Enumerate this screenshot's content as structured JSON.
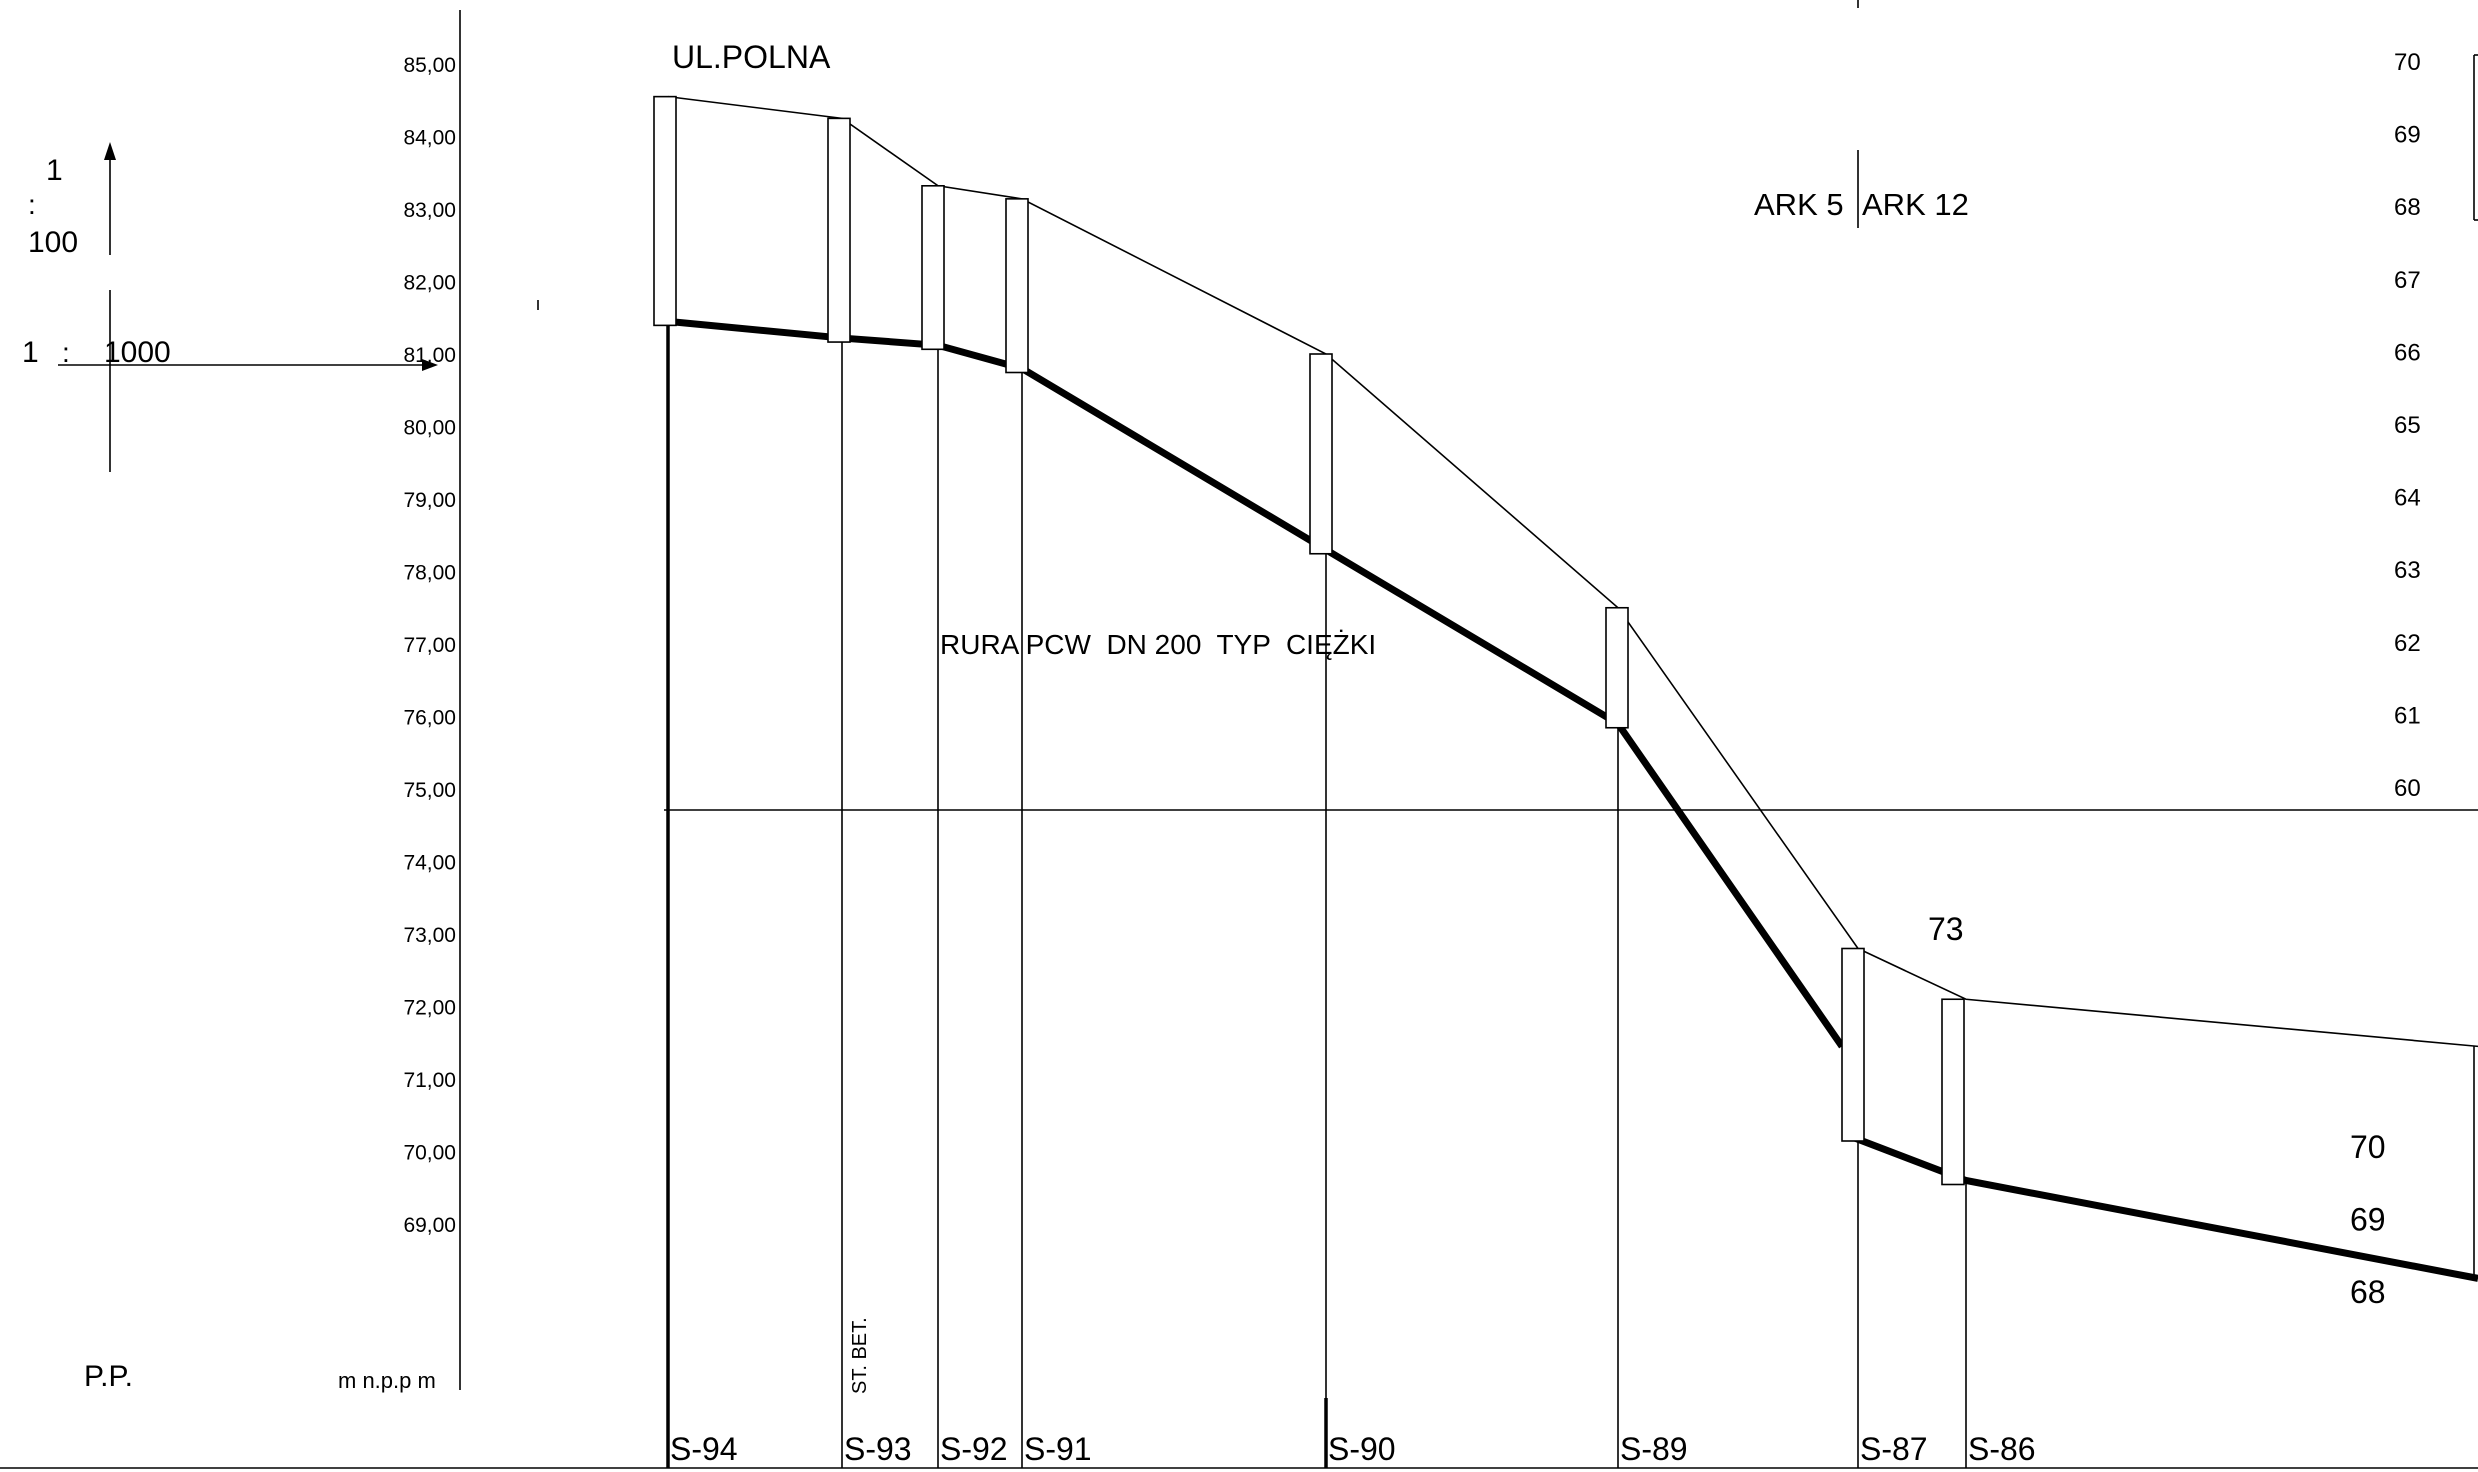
{
  "street_label": "UL.POLNA",
  "scale": {
    "vertical_num": "1",
    "vertical_colon": ":",
    "vertical_den": "100",
    "horizontal_num": "1",
    "horizontal_colon": ":",
    "horizontal_den": "1000"
  },
  "left_axis": {
    "ticks": [
      "85,00",
      "84,00",
      "83,00",
      "82,00",
      "81,00",
      "80,00",
      "79,00",
      "78,00",
      "77,00",
      "76,00",
      "75,00",
      "74,00",
      "73,00",
      "72,00",
      "71,00",
      "70,00",
      "69,00"
    ],
    "unit_label": "m  n.p.p m",
    "datum_label": "P.P."
  },
  "right_axis": {
    "ticks": [
      "70",
      "69",
      "68",
      "67",
      "66",
      "65",
      "64",
      "63",
      "62",
      "61",
      "60"
    ]
  },
  "lower_right_ticks": [
    "70",
    "69",
    "68"
  ],
  "sheet_labels": {
    "left": "ARK 5",
    "right": "ARK 12"
  },
  "pipe_label": "RURA PCW  DN 200  TYP  CIĘŻKI",
  "segment_label": "73",
  "material_label": "ST. BET.",
  "manholes": [
    "S-94",
    "S-93",
    "S-92",
    "S-91",
    "S-90",
    "S-89",
    "S-87",
    "S-86"
  ],
  "diagram_data": {
    "terrain_m": [
      84.55,
      84.25,
      83.32,
      83.14,
      81.0,
      77.5,
      72.8,
      72.1
    ],
    "invert_m": [
      81.45,
      81.22,
      81.12,
      80.8,
      78.3,
      75.9,
      70.2,
      69.6
    ]
  }
}
